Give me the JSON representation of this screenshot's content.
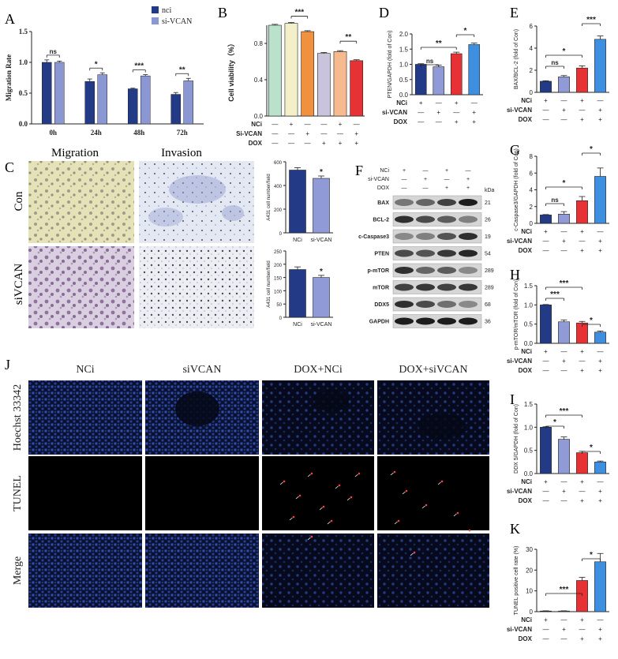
{
  "panels": {
    "A": "A",
    "B": "B",
    "C": "C",
    "D": "D",
    "E": "E",
    "F": "F",
    "G": "G",
    "H": "H",
    "I": "I",
    "J": "J",
    "K": "K"
  },
  "colors": {
    "navy": "#233a86",
    "lavender": "#8b97d2",
    "mint": "#b9e1cc",
    "cream": "#f3f0c9",
    "orange": "#f0913f",
    "mauve": "#c9c3db",
    "peach": "#f7b98e",
    "red": "#e63234",
    "blue": "#3f8fe0",
    "light": "#8f9ad6"
  },
  "chart_data": [
    {
      "panel": "A",
      "type": "bar",
      "ylabel": "Migration Rate",
      "ylim": [
        0,
        1.5
      ],
      "yticks": [
        "0.0",
        "0.5",
        "1.0",
        "1.5"
      ],
      "categories": [
        "0h",
        "24h",
        "48h",
        "72h"
      ],
      "series": [
        {
          "name": "nci",
          "color": "#233a86",
          "values": [
            1.0,
            0.69,
            0.57,
            0.48
          ],
          "errors": [
            0.04,
            0.04,
            0.01,
            0.03
          ]
        },
        {
          "name": "si-VCAN",
          "color": "#8b97d2",
          "values": [
            1.0,
            0.8,
            0.78,
            0.7
          ],
          "errors": [
            0.02,
            0.03,
            0.02,
            0.04
          ]
        }
      ],
      "significance": [
        "ns",
        "*",
        "***",
        "**"
      ]
    },
    {
      "panel": "B",
      "type": "bar",
      "ylabel": "Cell viability（%）",
      "ylim": [
        0,
        1.0
      ],
      "yticks": [
        "0.0",
        "0.4",
        "0.8"
      ],
      "values": [
        1.0,
        1.02,
        0.93,
        0.69,
        0.71,
        0.61
      ],
      "errors": [
        0.01,
        0.01,
        0.01,
        0.01,
        0.01,
        0.01
      ],
      "colors": [
        "#b9e1cc",
        "#f3f0c9",
        "#f0913f",
        "#c9c3db",
        "#f7b98e",
        "#e63234"
      ],
      "factors": [
        {
          "name": "NCi",
          "signs": [
            "—",
            "+",
            "—",
            "—",
            "+",
            "—"
          ]
        },
        {
          "name": "Si-VCAN",
          "signs": [
            "—",
            "—",
            "+",
            "—",
            "—",
            "+"
          ]
        },
        {
          "name": "DOX",
          "signs": [
            "—",
            "—",
            "—",
            "+",
            "+",
            "+"
          ]
        }
      ],
      "significance": [
        "***",
        "**"
      ]
    },
    {
      "panel": "D",
      "type": "bar",
      "ylabel": "PTEN/GAPDH (fold of Con)",
      "ylim": [
        0,
        2.0
      ],
      "yticks": [
        "0.0",
        "0.5",
        "1.0",
        "1.5",
        "2.0"
      ],
      "values": [
        1.0,
        0.92,
        1.35,
        1.65
      ],
      "errors": [
        0.02,
        0.05,
        0.05,
        0.05
      ],
      "colors": [
        "#233a86",
        "#8f9ad6",
        "#e63234",
        "#3f8fe0"
      ],
      "factors": [
        {
          "name": "NCi",
          "signs": [
            "+",
            "—",
            "+",
            "—"
          ]
        },
        {
          "name": "si-VCAN",
          "signs": [
            "—",
            "+",
            "—",
            "+"
          ]
        },
        {
          "name": "DOX",
          "signs": [
            "—",
            "—",
            "+",
            "+"
          ]
        }
      ],
      "significance": [
        "ns",
        "**",
        "*"
      ]
    },
    {
      "panel": "E",
      "type": "bar",
      "ylabel": "BAX/BCL-2 (fold of Con)",
      "ylim": [
        0,
        6
      ],
      "yticks": [
        "0",
        "2",
        "4",
        "6"
      ],
      "values": [
        1.0,
        1.4,
        2.2,
        4.8
      ],
      "errors": [
        0.05,
        0.12,
        0.2,
        0.3
      ],
      "colors": [
        "#233a86",
        "#8f9ad6",
        "#e63234",
        "#3f8fe0"
      ],
      "factors": [
        {
          "name": "NCi",
          "signs": [
            "+",
            "—",
            "+",
            "—"
          ]
        },
        {
          "name": "si-VCAN",
          "signs": [
            "—",
            "+",
            "—",
            "+"
          ]
        },
        {
          "name": "DOX",
          "signs": [
            "—",
            "—",
            "+",
            "+"
          ]
        }
      ],
      "significance": [
        "ns",
        "*",
        "***"
      ]
    },
    {
      "panel": "G",
      "type": "bar",
      "ylabel": "c-Caspase3/GAPDH (fold of Con)",
      "ylim": [
        0,
        8
      ],
      "yticks": [
        "0",
        "2",
        "4",
        "6",
        "8"
      ],
      "values": [
        1.0,
        1.1,
        2.7,
        5.6
      ],
      "errors": [
        0.05,
        0.3,
        0.5,
        1.0
      ],
      "colors": [
        "#233a86",
        "#8f9ad6",
        "#e63234",
        "#3f8fe0"
      ],
      "factors": [
        {
          "name": "NCi",
          "signs": [
            "+",
            "—",
            "+",
            "—"
          ]
        },
        {
          "name": "si-VCAN",
          "signs": [
            "—",
            "+",
            "—",
            "+"
          ]
        },
        {
          "name": "DOX",
          "signs": [
            "—",
            "—",
            "+",
            "+"
          ]
        }
      ],
      "significance": [
        "ns",
        "*",
        "*"
      ]
    },
    {
      "panel": "H",
      "type": "bar",
      "ylabel": "p-mTOR/mTOR (fold of Con)",
      "ylim": [
        0,
        1.5
      ],
      "yticks": [
        "0.0",
        "0.5",
        "1.0",
        "1.5"
      ],
      "values": [
        1.0,
        0.56,
        0.53,
        0.29
      ],
      "errors": [
        0.01,
        0.05,
        0.04,
        0.03
      ],
      "colors": [
        "#233a86",
        "#8f9ad6",
        "#e63234",
        "#3f8fe0"
      ],
      "factors": [
        {
          "name": "NCi",
          "signs": [
            "+",
            "—",
            "+",
            "—"
          ]
        },
        {
          "name": "si-VCAN",
          "signs": [
            "—",
            "+",
            "—",
            "+"
          ]
        },
        {
          "name": "DOX",
          "signs": [
            "—",
            "—",
            "+",
            "+"
          ]
        }
      ],
      "significance": [
        "***",
        "***",
        "*"
      ]
    },
    {
      "panel": "I",
      "type": "bar",
      "ylabel": "DDX 5/GAPDH (fold of Con)",
      "ylim": [
        0,
        1.5
      ],
      "yticks": [
        "0.0",
        "0.5",
        "1.0",
        "1.5"
      ],
      "values": [
        1.0,
        0.74,
        0.45,
        0.25
      ],
      "errors": [
        0.01,
        0.05,
        0.03,
        0.02
      ],
      "colors": [
        "#233a86",
        "#8f9ad6",
        "#e63234",
        "#3f8fe0"
      ],
      "factors": [
        {
          "name": "NCi",
          "signs": [
            "+",
            "—",
            "+",
            "—"
          ]
        },
        {
          "name": "si-VCAN",
          "signs": [
            "—",
            "+",
            "—",
            "+"
          ]
        },
        {
          "name": "DOX",
          "signs": [
            "—",
            "—",
            "+",
            "+"
          ]
        }
      ],
      "significance": [
        "*",
        "***",
        "*"
      ]
    },
    {
      "panel": "K",
      "type": "bar",
      "ylabel": "TUNEL positive cell rate (%)",
      "ylim": [
        0,
        30
      ],
      "yticks": [
        "0",
        "10",
        "20",
        "30"
      ],
      "values": [
        0.3,
        0.3,
        15.0,
        24.0
      ],
      "errors": [
        0.1,
        0.1,
        1.5,
        4.0
      ],
      "colors": [
        "#233a86",
        "#8f9ad6",
        "#e63234",
        "#3f8fe0"
      ],
      "factors": [
        {
          "name": "NCi",
          "signs": [
            "+",
            "—",
            "+",
            "—"
          ]
        },
        {
          "name": "si-VCAN",
          "signs": [
            "—",
            "+",
            "—",
            "+"
          ]
        },
        {
          "name": "DOX",
          "signs": [
            "—",
            "—",
            "+",
            "+"
          ]
        }
      ],
      "significance": [
        "***",
        "*"
      ]
    },
    {
      "panel": "C-top",
      "type": "bar",
      "ylabel": "A431 cell number/field",
      "ylim": [
        0,
        600
      ],
      "yticks": [
        "0",
        "200",
        "400",
        "600"
      ],
      "categories": [
        "NCi",
        "si-VCAN"
      ],
      "values": [
        530,
        460
      ],
      "errors": [
        20,
        20
      ],
      "colors": [
        "#233a86",
        "#8f9ad6"
      ],
      "significance": [
        "*"
      ]
    },
    {
      "panel": "C-bottom",
      "type": "bar",
      "ylabel": "A431 cell number/field",
      "ylim": [
        0,
        250
      ],
      "yticks": [
        "0",
        "50",
        "100",
        "150",
        "200",
        "250"
      ],
      "categories": [
        "NCi",
        "si-VCAN"
      ],
      "values": [
        180,
        150
      ],
      "errors": [
        10,
        8
      ],
      "colors": [
        "#233a86",
        "#8f9ad6"
      ],
      "significance": [
        "*"
      ]
    }
  ],
  "microscopy": {
    "columns": [
      "Migration",
      "Invasion"
    ],
    "rows": [
      "Con",
      "siVCAN"
    ]
  },
  "western": {
    "lane_labels": [
      "NCi",
      "si-VCAN",
      "DOX"
    ],
    "lane_signs": [
      [
        "+",
        "—",
        "+",
        "—"
      ],
      [
        "—",
        "+",
        "—",
        "+"
      ],
      [
        "—",
        "—",
        "+",
        "+"
      ]
    ],
    "kda_header": "kDa",
    "blots": [
      {
        "name": "BAX",
        "kda": "21",
        "intensity": [
          0.45,
          0.55,
          0.75,
          0.95
        ]
      },
      {
        "name": "BCL-2",
        "kda": "26",
        "intensity": [
          0.85,
          0.7,
          0.6,
          0.4
        ]
      },
      {
        "name": "c-Caspase3",
        "kda": "19",
        "intensity": [
          0.35,
          0.4,
          0.65,
          0.85
        ]
      },
      {
        "name": "PTEN",
        "kda": "54",
        "intensity": [
          0.7,
          0.65,
          0.8,
          0.9
        ]
      },
      {
        "name": "p-mTOR",
        "kda": "289",
        "intensity": [
          0.85,
          0.55,
          0.6,
          0.35
        ]
      },
      {
        "name": "mTOR",
        "kda": "289",
        "intensity": [
          0.75,
          0.8,
          0.75,
          0.8
        ]
      },
      {
        "name": "DDX5",
        "kda": "68",
        "intensity": [
          0.85,
          0.7,
          0.5,
          0.35
        ]
      },
      {
        "name": "GAPDH",
        "kda": "36",
        "intensity": [
          0.95,
          0.95,
          0.95,
          0.95
        ]
      }
    ]
  },
  "fluorescence": {
    "columns": [
      "NCi",
      "siVCAN",
      "DOX+NCi",
      "DOX+siVCAN"
    ],
    "rows": [
      "Hoechst 33342",
      "TUNEL",
      "Merge"
    ]
  }
}
